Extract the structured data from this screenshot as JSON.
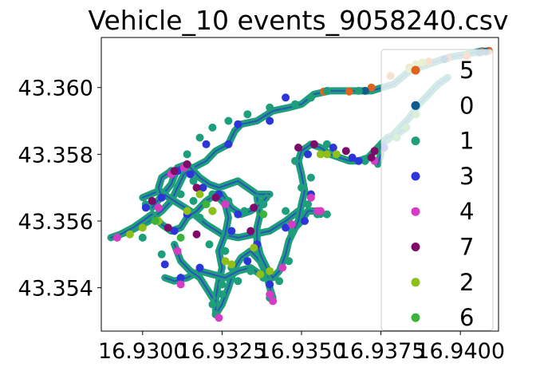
{
  "chart_data": {
    "type": "scatter",
    "title": "Vehicle_10 events_9058240.csv",
    "xlabel": "",
    "ylabel": "",
    "xlim": [
      16.9287,
      16.9412
    ],
    "ylim": [
      43.3527,
      43.3615
    ],
    "xticks": [
      16.93,
      16.9325,
      16.935,
      16.9375,
      16.94
    ],
    "xtick_labels": [
      "16.9300",
      "16.9325",
      "16.9350",
      "16.9375",
      "16.9400"
    ],
    "yticks": [
      43.354,
      43.356,
      43.358,
      43.36
    ],
    "ytick_labels": [
      "43.354",
      "43.356",
      "43.358",
      "43.360"
    ],
    "grid": false,
    "legend_position": "right",
    "series": [
      {
        "name": "5",
        "color": "#e0641e",
        "points": [
          [
            16.9357,
            43.35988
          ],
          [
            16.9365,
            43.35988
          ],
          [
            16.9372,
            43.36
          ],
          [
            16.9378,
            43.36035
          ],
          [
            16.9384,
            43.3606
          ],
          [
            16.939,
            43.36078
          ],
          [
            16.9396,
            43.36088
          ],
          [
            16.9402,
            43.36095
          ],
          [
            16.9407,
            43.36108
          ],
          [
            16.9409,
            43.3611
          ]
        ]
      },
      {
        "name": "0",
        "color": "#0e5d8c",
        "points": [
          [
            16.937,
            43.3599
          ],
          [
            16.9395,
            43.36085
          ],
          [
            16.9406,
            43.36105
          ],
          [
            16.9408,
            43.36108
          ]
        ]
      },
      {
        "name": "1",
        "color": "#1f9e7c",
        "points": [
          [
            16.9301,
            43.3565
          ],
          [
            16.9312,
            43.3568
          ],
          [
            16.9316,
            43.3566
          ],
          [
            16.9318,
            43.3561
          ],
          [
            16.9321,
            43.3553
          ],
          [
            16.9326,
            43.3551
          ],
          [
            16.9328,
            43.3546
          ],
          [
            16.9325,
            43.3541
          ],
          [
            16.9322,
            43.3535
          ],
          [
            16.9323,
            43.3532
          ],
          [
            16.9325,
            43.3538
          ],
          [
            16.933,
            43.3542
          ],
          [
            16.9334,
            43.3545
          ],
          [
            16.9338,
            43.3543
          ],
          [
            16.934,
            43.3537
          ],
          [
            16.9343,
            43.3542
          ],
          [
            16.9346,
            43.3548
          ],
          [
            16.9347,
            43.3557
          ],
          [
            16.9345,
            43.3563
          ],
          [
            16.9338,
            43.3565
          ],
          [
            16.9332,
            43.3563
          ],
          [
            16.9327,
            43.3566
          ],
          [
            16.9322,
            43.3568
          ],
          [
            16.9316,
            43.3572
          ],
          [
            16.9309,
            43.3575
          ],
          [
            16.9314,
            43.358
          ],
          [
            16.9318,
            43.3585
          ],
          [
            16.9322,
            43.3588
          ],
          [
            16.9327,
            43.359
          ],
          [
            16.9333,
            43.3592
          ],
          [
            16.934,
            43.3594
          ],
          [
            16.9348,
            43.3595
          ],
          [
            16.9353,
            43.3597
          ],
          [
            16.9358,
            43.3599
          ],
          [
            16.9368,
            43.3599
          ],
          [
            16.9348,
            43.3578
          ],
          [
            16.935,
            43.357
          ],
          [
            16.9352,
            43.3565
          ],
          [
            16.9355,
            43.3562
          ],
          [
            16.9358,
            43.3562
          ],
          [
            16.9353,
            43.3573
          ],
          [
            16.9358,
            43.3583
          ],
          [
            16.937,
            43.3578
          ],
          [
            16.9374,
            43.3581
          ],
          [
            16.9306,
            43.355
          ],
          [
            16.93,
            43.3555
          ]
        ]
      },
      {
        "name": "3",
        "color": "#2b35d8",
        "points": [
          [
            16.9301,
            43.3564
          ],
          [
            16.9306,
            43.3567
          ],
          [
            16.9311,
            43.3575
          ],
          [
            16.9315,
            43.3574
          ],
          [
            16.9319,
            43.357
          ],
          [
            16.9324,
            43.3568
          ],
          [
            16.933,
            43.3562
          ],
          [
            16.9328,
            43.3557
          ],
          [
            16.9322,
            43.3563
          ],
          [
            16.9314,
            43.3562
          ],
          [
            16.931,
            43.3557
          ],
          [
            16.9307,
            43.3547
          ],
          [
            16.9312,
            43.3543
          ],
          [
            16.9318,
            43.3546
          ],
          [
            16.9333,
            43.3548
          ],
          [
            16.934,
            43.3541
          ],
          [
            16.9336,
            43.3553
          ],
          [
            16.9345,
            43.3558
          ],
          [
            16.9351,
            43.356
          ],
          [
            16.9353,
            43.3568
          ],
          [
            16.9352,
            43.358
          ],
          [
            16.936,
            43.3582
          ],
          [
            16.9366,
            43.3579
          ],
          [
            16.9368,
            43.3578
          ],
          [
            16.9376,
            43.3582
          ],
          [
            16.933,
            43.3589
          ],
          [
            16.9327,
            43.3583
          ],
          [
            16.932,
            43.3583
          ],
          [
            16.934,
            43.359
          ],
          [
            16.9345,
            43.3597
          ]
        ]
      },
      {
        "name": "4",
        "color": "#d43cc4",
        "points": [
          [
            16.9292,
            43.3555
          ],
          [
            16.9305,
            43.3564
          ],
          [
            16.9309,
            43.3574
          ],
          [
            16.9313,
            43.3576
          ],
          [
            16.9326,
            43.3565
          ],
          [
            16.9311,
            43.3551
          ],
          [
            16.9312,
            43.3541
          ],
          [
            16.9324,
            43.3531
          ],
          [
            16.934,
            43.3538
          ],
          [
            16.9341,
            43.3536
          ],
          [
            16.9344,
            43.3546
          ],
          [
            16.9347,
            43.3559
          ],
          [
            16.9353,
            43.3567
          ],
          [
            16.9355,
            43.3563
          ],
          [
            16.9356,
            43.3563
          ],
          [
            16.9373,
            43.3578
          ]
        ]
      },
      {
        "name": "7",
        "color": "#7e0b6a",
        "points": [
          [
            16.9303,
            43.3566
          ],
          [
            16.931,
            43.3575
          ],
          [
            16.9314,
            43.3577
          ],
          [
            16.9317,
            43.357
          ],
          [
            16.9323,
            43.3567
          ],
          [
            16.9335,
            43.3564
          ],
          [
            16.9349,
            43.3582
          ],
          [
            16.9354,
            43.3583
          ],
          [
            16.9364,
            43.3581
          ],
          [
            16.9372,
            43.3579
          ],
          [
            16.9373,
            43.3581
          ],
          [
            16.9334,
            43.3557
          ],
          [
            16.9317,
            43.3556
          ],
          [
            16.9308,
            43.3558
          ]
        ]
      },
      {
        "name": "2",
        "color": "#8ebf1a",
        "points": [
          [
            16.9296,
            43.3556
          ],
          [
            16.93,
            43.3558
          ],
          [
            16.9305,
            43.356
          ],
          [
            16.9314,
            43.3563
          ],
          [
            16.9318,
            43.3568
          ],
          [
            16.9322,
            43.3563
          ],
          [
            16.9326,
            43.3548
          ],
          [
            16.9328,
            43.3547
          ],
          [
            16.9335,
            43.3552
          ],
          [
            16.9337,
            43.3544
          ],
          [
            16.934,
            43.3545
          ],
          [
            16.9356,
            43.358
          ],
          [
            16.9358,
            43.358
          ],
          [
            16.9361,
            43.358
          ],
          [
            16.9384,
            43.36055
          ],
          [
            16.9386,
            43.3607
          ],
          [
            16.9388,
            43.36075
          ]
        ]
      },
      {
        "name": "6",
        "color": "#3cb43c",
        "points": [
          [
            16.9304,
            43.356
          ],
          [
            16.9312,
            43.3555
          ],
          [
            16.932,
            43.3565
          ],
          [
            16.9338,
            43.3562
          ],
          [
            16.938,
            43.3585
          ],
          [
            16.9383,
            43.3588
          ],
          [
            16.9386,
            43.3592
          ]
        ]
      }
    ],
    "tracks": [
      [
        [
          16.929,
          43.3555
        ],
        [
          16.9296,
          43.3557
        ],
        [
          16.9302,
          43.356
        ],
        [
          16.9306,
          43.3563
        ],
        [
          16.9309,
          43.3566
        ],
        [
          16.9311,
          43.357
        ],
        [
          16.9313,
          43.3574
        ],
        [
          16.9316,
          43.3576
        ],
        [
          16.932,
          43.3578
        ],
        [
          16.9323,
          43.3581
        ],
        [
          16.9327,
          43.3583
        ],
        [
          16.9329,
          43.3587
        ],
        [
          16.9331,
          43.3589
        ],
        [
          16.9336,
          43.359
        ],
        [
          16.9341,
          43.3593
        ],
        [
          16.9346,
          43.3594
        ],
        [
          16.935,
          43.3595
        ],
        [
          16.9354,
          43.3598
        ],
        [
          16.9359,
          43.3599
        ],
        [
          16.9365,
          43.3599
        ],
        [
          16.9372,
          43.3599
        ],
        [
          16.9379,
          43.3601
        ],
        [
          16.9384,
          43.3605
        ],
        [
          16.939,
          43.3607
        ],
        [
          16.9396,
          43.3609
        ],
        [
          16.9402,
          43.361
        ],
        [
          16.9407,
          43.3611
        ]
      ],
      [
        [
          16.9303,
          43.3564
        ],
        [
          16.9309,
          43.3571
        ],
        [
          16.9311,
          43.3576
        ],
        [
          16.9314,
          43.3577
        ],
        [
          16.9318,
          43.3573
        ],
        [
          16.9321,
          43.3571
        ],
        [
          16.9324,
          43.357
        ],
        [
          16.9327,
          43.3571
        ],
        [
          16.933,
          43.3572
        ],
        [
          16.9333,
          43.357
        ],
        [
          16.9336,
          43.3568
        ],
        [
          16.934,
          43.3568
        ]
      ],
      [
        [
          16.93,
          43.3567
        ],
        [
          16.9305,
          43.3569
        ],
        [
          16.931,
          43.3566
        ],
        [
          16.9315,
          43.3563
        ],
        [
          16.932,
          43.3559
        ],
        [
          16.9325,
          43.3556
        ],
        [
          16.933,
          43.3555
        ],
        [
          16.9335,
          43.3556
        ],
        [
          16.934,
          43.3557
        ],
        [
          16.9345,
          43.356
        ],
        [
          16.9349,
          43.3563
        ]
      ],
      [
        [
          16.9303,
          43.3562
        ],
        [
          16.9306,
          43.3559
        ],
        [
          16.9309,
          43.3557
        ],
        [
          16.9312,
          43.3558
        ],
        [
          16.9314,
          43.3561
        ],
        [
          16.9317,
          43.3563
        ],
        [
          16.932,
          43.3566
        ],
        [
          16.9323,
          43.3568
        ],
        [
          16.9326,
          43.3565
        ],
        [
          16.9327,
          43.3561
        ],
        [
          16.9326,
          43.3556
        ],
        [
          16.9324,
          43.3551
        ],
        [
          16.9325,
          43.3546
        ],
        [
          16.9324,
          43.3542
        ],
        [
          16.9323,
          43.3537
        ],
        [
          16.9323,
          43.3532
        ],
        [
          16.9325,
          43.3535
        ],
        [
          16.9327,
          43.354
        ],
        [
          16.9329,
          43.3546
        ],
        [
          16.9331,
          43.3549
        ],
        [
          16.9334,
          43.3551
        ],
        [
          16.9337,
          43.3548
        ],
        [
          16.9339,
          43.3544
        ],
        [
          16.934,
          43.354
        ],
        [
          16.9341,
          43.3537
        ]
      ],
      [
        [
          16.9307,
          43.3543
        ],
        [
          16.931,
          43.3542
        ],
        [
          16.9314,
          43.3543
        ],
        [
          16.9318,
          43.3545
        ],
        [
          16.9322,
          43.3544
        ],
        [
          16.9326,
          43.3543
        ],
        [
          16.933,
          43.3545
        ],
        [
          16.9334,
          43.3546
        ],
        [
          16.9337,
          43.3544
        ],
        [
          16.934,
          43.3543
        ]
      ],
      [
        [
          16.931,
          43.3553
        ],
        [
          16.9312,
          43.3548
        ],
        [
          16.9315,
          43.3545
        ],
        [
          16.9318,
          43.3543
        ],
        [
          16.932,
          43.354
        ],
        [
          16.9322,
          43.3537
        ]
      ],
      [
        [
          16.9336,
          43.3567
        ],
        [
          16.9337,
          43.3562
        ],
        [
          16.9336,
          43.3558
        ],
        [
          16.9336,
          43.3554
        ],
        [
          16.9337,
          43.355
        ],
        [
          16.9339,
          43.3546
        ],
        [
          16.9341,
          43.3543
        ],
        [
          16.9343,
          43.3545
        ],
        [
          16.9345,
          43.355
        ],
        [
          16.9346,
          43.3554
        ],
        [
          16.9348,
          43.3558
        ],
        [
          16.935,
          43.356
        ],
        [
          16.9352,
          43.3563
        ],
        [
          16.9355,
          43.3563
        ],
        [
          16.9356,
          43.3562
        ]
      ],
      [
        [
          16.9347,
          43.3556
        ],
        [
          16.9349,
          43.356
        ],
        [
          16.935,
          43.3565
        ],
        [
          16.9351,
          43.3569
        ],
        [
          16.935,
          43.3574
        ],
        [
          16.9349,
          43.3578
        ],
        [
          16.935,
          43.3581
        ],
        [
          16.9353,
          43.3583
        ],
        [
          16.9356,
          43.3582
        ],
        [
          16.9359,
          43.358
        ],
        [
          16.9362,
          43.3579
        ],
        [
          16.9365,
          43.3578
        ],
        [
          16.9368,
          43.3578
        ],
        [
          16.9371,
          43.3579
        ],
        [
          16.9373,
          43.3581
        ],
        [
          16.9375,
          43.3583
        ],
        [
          16.9378,
          43.3585
        ],
        [
          16.9381,
          43.3588
        ],
        [
          16.9384,
          43.3591
        ],
        [
          16.9387,
          43.3595
        ],
        [
          16.939,
          43.3598
        ],
        [
          16.9393,
          43.3601
        ],
        [
          16.9396,
          43.3603
        ]
      ],
      [
        [
          16.9374,
          43.3577
        ],
        [
          16.9375,
          43.358
        ],
        [
          16.9375,
          43.3583
        ],
        [
          16.9377,
          43.3585
        ],
        [
          16.938,
          43.3586
        ],
        [
          16.9383,
          43.3588
        ]
      ],
      [
        [
          16.9293,
          43.3556
        ],
        [
          16.9297,
          43.3558
        ],
        [
          16.93,
          43.356
        ],
        [
          16.9303,
          43.3562
        ]
      ],
      [
        [
          16.9306,
          43.3567
        ],
        [
          16.9305,
          43.357
        ],
        [
          16.9306,
          43.3573
        ],
        [
          16.9309,
          43.3575
        ]
      ],
      [
        [
          16.9325,
          43.3568
        ],
        [
          16.9328,
          43.3564
        ],
        [
          16.9331,
          43.3562
        ],
        [
          16.9334,
          43.3563
        ],
        [
          16.9337,
          43.3565
        ],
        [
          16.9339,
          43.3567
        ]
      ]
    ]
  }
}
